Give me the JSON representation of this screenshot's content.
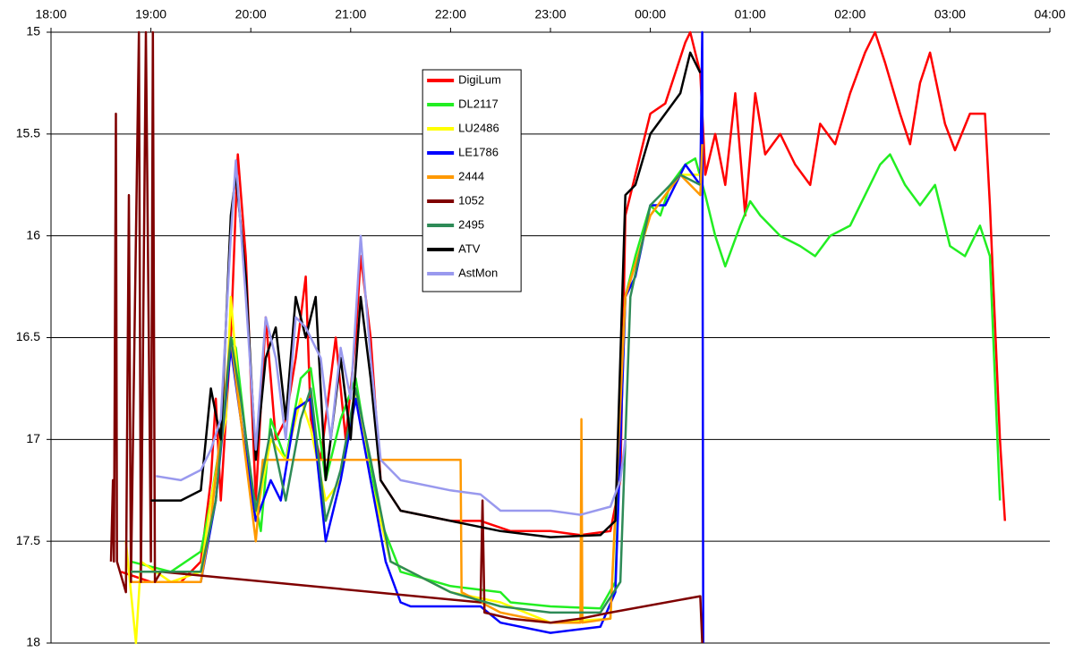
{
  "chart_data": {
    "type": "line",
    "xlim": [
      18,
      28
    ],
    "xticks": [
      {
        "value": 18,
        "label": "18:00"
      },
      {
        "value": 19,
        "label": "19:00"
      },
      {
        "value": 20,
        "label": "20:00"
      },
      {
        "value": 21,
        "label": "21:00"
      },
      {
        "value": 22,
        "label": "22:00"
      },
      {
        "value": 23,
        "label": "23:00"
      },
      {
        "value": 24,
        "label": "00:00"
      },
      {
        "value": 25,
        "label": "01:00"
      },
      {
        "value": 26,
        "label": "02:00"
      },
      {
        "value": 27,
        "label": "03:00"
      },
      {
        "value": 28,
        "label": "04:00"
      }
    ],
    "ylim": [
      18,
      15
    ],
    "yticks": [
      15,
      15.5,
      16,
      16.5,
      17,
      17.5,
      18
    ],
    "grid": true,
    "legend": "upper center",
    "series": [
      {
        "name": "DigiLum",
        "color": "#ff0000",
        "x": [
          18.7,
          19.0,
          19.3,
          19.5,
          19.6,
          19.65,
          19.7,
          19.8,
          19.87,
          19.95,
          20.05,
          20.15,
          20.25,
          20.35,
          20.45,
          20.55,
          20.6,
          20.7,
          20.85,
          20.95,
          21.05,
          21.1,
          21.2,
          21.3,
          21.5,
          22.0,
          22.3,
          22.6,
          23.0,
          23.3,
          23.6,
          23.7,
          23.75,
          23.85,
          24.0,
          24.15,
          24.25,
          24.35,
          24.4,
          24.5,
          24.55,
          24.65,
          24.75,
          24.85,
          24.95,
          25.05,
          25.15,
          25.3,
          25.45,
          25.6,
          25.7,
          25.85,
          26.0,
          26.15,
          26.25,
          26.35,
          26.5,
          26.6,
          26.7,
          26.8,
          26.95,
          27.05,
          27.2,
          27.35,
          27.4,
          27.5,
          27.55
        ],
        "values": [
          17.65,
          17.7,
          17.7,
          17.6,
          17.2,
          16.8,
          17.3,
          16.5,
          15.6,
          16.1,
          17.3,
          16.4,
          17.0,
          16.9,
          16.6,
          16.2,
          16.9,
          17.1,
          16.5,
          17.0,
          16.5,
          16.1,
          16.5,
          17.2,
          17.35,
          17.4,
          17.4,
          17.45,
          17.45,
          17.47,
          17.45,
          17.2,
          15.9,
          15.7,
          15.4,
          15.35,
          15.2,
          15.05,
          15.0,
          15.2,
          15.7,
          15.5,
          15.75,
          15.3,
          15.9,
          15.3,
          15.6,
          15.5,
          15.65,
          15.75,
          15.45,
          15.55,
          15.3,
          15.1,
          15.0,
          15.15,
          15.4,
          15.55,
          15.25,
          15.1,
          15.45,
          15.58,
          15.4,
          15.4,
          15.85,
          17.0,
          17.4
        ]
      },
      {
        "name": "DL2117",
        "color": "#22ee22",
        "x": [
          18.8,
          19.2,
          19.5,
          19.6,
          19.7,
          19.8,
          19.85,
          20.0,
          20.1,
          20.2,
          20.35,
          20.5,
          20.6,
          20.75,
          20.9,
          21.05,
          21.15,
          21.3,
          21.5,
          22.0,
          22.5,
          22.6,
          23.0,
          23.5,
          23.65,
          23.75,
          23.85,
          24.0,
          24.1,
          24.2,
          24.35,
          24.45,
          24.55,
          24.65,
          24.75,
          24.9,
          25.0,
          25.1,
          25.3,
          25.5,
          25.65,
          25.8,
          26.0,
          26.2,
          26.3,
          26.4,
          26.55,
          26.7,
          26.85,
          27.0,
          27.15,
          27.3,
          27.4,
          27.5
        ],
        "values": [
          17.6,
          17.65,
          17.55,
          17.3,
          17.0,
          16.5,
          16.55,
          17.2,
          17.45,
          16.9,
          17.1,
          16.7,
          16.65,
          17.2,
          16.9,
          16.7,
          17.0,
          17.4,
          17.65,
          17.72,
          17.75,
          17.8,
          17.82,
          17.83,
          17.7,
          16.3,
          16.1,
          15.85,
          15.9,
          15.75,
          15.65,
          15.62,
          15.8,
          16.0,
          16.15,
          15.95,
          15.83,
          15.9,
          16.0,
          16.05,
          16.1,
          16.0,
          15.95,
          15.75,
          15.65,
          15.6,
          15.75,
          15.85,
          15.75,
          16.05,
          16.1,
          15.95,
          16.1,
          17.3
        ]
      },
      {
        "name": "LU2486",
        "color": "#ffff00",
        "x": [
          18.75,
          18.85,
          18.9,
          19.2,
          19.5,
          19.6,
          19.75,
          19.8,
          19.9,
          20.05,
          20.2,
          20.35,
          20.5,
          20.6,
          20.75,
          20.9,
          21.05,
          21.2,
          21.4,
          22.0,
          22.5,
          23.0,
          23.6,
          23.75,
          24.0,
          24.3,
          24.5
        ],
        "values": [
          17.5,
          18.0,
          17.6,
          17.7,
          17.65,
          17.3,
          16.9,
          16.3,
          16.9,
          17.4,
          17.0,
          17.1,
          16.8,
          16.95,
          17.3,
          17.2,
          16.75,
          17.2,
          17.6,
          17.75,
          17.8,
          17.9,
          17.88,
          16.3,
          15.9,
          15.7,
          15.7
        ]
      },
      {
        "name": "LE1786",
        "color": "#0000ff",
        "x": [
          18.8,
          19.5,
          19.65,
          19.8,
          19.9,
          20.05,
          20.2,
          20.3,
          20.45,
          20.6,
          20.75,
          20.9,
          21.05,
          21.2,
          21.35,
          21.5,
          21.6,
          22.0,
          22.3,
          22.5,
          23.0,
          23.5,
          23.65,
          23.75,
          23.85,
          24.0,
          24.15,
          24.35,
          24.5,
          24.52,
          24.53
        ],
        "values": [
          17.7,
          17.7,
          17.3,
          16.55,
          16.9,
          17.4,
          17.2,
          17.3,
          16.85,
          16.8,
          17.5,
          17.2,
          16.8,
          17.2,
          17.6,
          17.8,
          17.82,
          17.82,
          17.82,
          17.9,
          17.95,
          17.92,
          17.75,
          16.3,
          16.2,
          15.85,
          15.85,
          15.65,
          15.75,
          15.0,
          18.0
        ]
      },
      {
        "name": "2444",
        "color": "#ff9900",
        "x": [
          18.8,
          19.5,
          19.6,
          19.8,
          19.9,
          20.05,
          20.12,
          21.3,
          22.1,
          22.11,
          22.5,
          23.0,
          23.3,
          23.31,
          23.32,
          23.6,
          23.75,
          24.0,
          24.3,
          24.5,
          24.52
        ],
        "values": [
          17.7,
          17.7,
          17.4,
          16.5,
          16.9,
          17.5,
          17.1,
          17.1,
          17.1,
          17.75,
          17.85,
          17.9,
          17.9,
          16.9,
          17.9,
          17.88,
          16.3,
          15.9,
          15.7,
          15.8,
          15.55
        ]
      },
      {
        "name": "1052",
        "color": "#7f0000",
        "x": [
          18.6,
          18.62,
          18.63,
          18.65,
          18.66,
          18.75,
          18.78,
          18.8,
          18.88,
          18.9,
          18.95,
          19.0,
          19.02,
          19.04,
          19.1,
          22.3,
          22.32,
          22.34,
          22.6,
          23.0,
          23.3,
          23.6,
          24.5,
          24.52
        ],
        "values": [
          17.6,
          17.2,
          17.6,
          15.4,
          17.6,
          17.75,
          15.8,
          17.7,
          15.0,
          17.7,
          15.0,
          17.6,
          15.0,
          17.7,
          17.65,
          17.8,
          17.3,
          17.85,
          17.88,
          17.9,
          17.88,
          17.85,
          17.77,
          18.0
        ]
      },
      {
        "name": "2495",
        "color": "#2e8b57",
        "x": [
          18.8,
          19.5,
          19.65,
          19.8,
          19.9,
          20.05,
          20.2,
          20.35,
          20.5,
          20.6,
          20.75,
          20.9,
          21.05,
          21.2,
          21.4,
          22.0,
          22.5,
          23.0,
          23.5,
          23.7,
          23.8,
          24.0,
          24.3,
          24.5
        ],
        "values": [
          17.65,
          17.65,
          17.3,
          16.5,
          16.8,
          17.35,
          16.95,
          17.3,
          16.9,
          16.75,
          17.4,
          17.15,
          16.75,
          17.1,
          17.6,
          17.75,
          17.82,
          17.85,
          17.85,
          17.7,
          16.3,
          15.85,
          15.7,
          15.75
        ]
      },
      {
        "name": "ATV",
        "color": "#000000",
        "x": [
          19.0,
          19.3,
          19.5,
          19.6,
          19.7,
          19.8,
          19.85,
          19.95,
          20.05,
          20.15,
          20.25,
          20.35,
          20.45,
          20.55,
          20.65,
          20.75,
          20.9,
          21.0,
          21.1,
          21.2,
          21.3,
          21.5,
          22.0,
          22.5,
          23.0,
          23.5,
          23.65,
          23.75,
          23.85,
          24.0,
          24.15,
          24.3,
          24.4,
          24.5
        ],
        "values": [
          17.3,
          17.3,
          17.25,
          16.75,
          17.0,
          15.9,
          15.7,
          16.2,
          17.1,
          16.6,
          16.45,
          16.9,
          16.3,
          16.5,
          16.3,
          17.2,
          16.6,
          17.0,
          16.3,
          16.7,
          17.2,
          17.35,
          17.4,
          17.45,
          17.48,
          17.47,
          17.4,
          15.8,
          15.75,
          15.5,
          15.4,
          15.3,
          15.1,
          15.2
        ]
      },
      {
        "name": "AstMon",
        "color": "#9999ee",
        "x": [
          19.05,
          19.3,
          19.5,
          19.6,
          19.7,
          19.8,
          19.85,
          19.95,
          20.05,
          20.15,
          20.25,
          20.35,
          20.45,
          20.55,
          20.7,
          20.8,
          20.9,
          21.0,
          21.1,
          21.2,
          21.3,
          21.5,
          22.0,
          22.3,
          22.5,
          23.0,
          23.3,
          23.6,
          23.7,
          23.75
        ],
        "values": [
          17.18,
          17.2,
          17.15,
          17.05,
          16.9,
          16.0,
          15.63,
          16.3,
          17.05,
          16.4,
          16.6,
          17.0,
          16.4,
          16.45,
          16.6,
          17.0,
          16.55,
          16.8,
          16.0,
          16.6,
          17.1,
          17.2,
          17.25,
          17.27,
          17.35,
          17.35,
          17.37,
          17.33,
          17.2,
          17.0
        ]
      }
    ]
  }
}
